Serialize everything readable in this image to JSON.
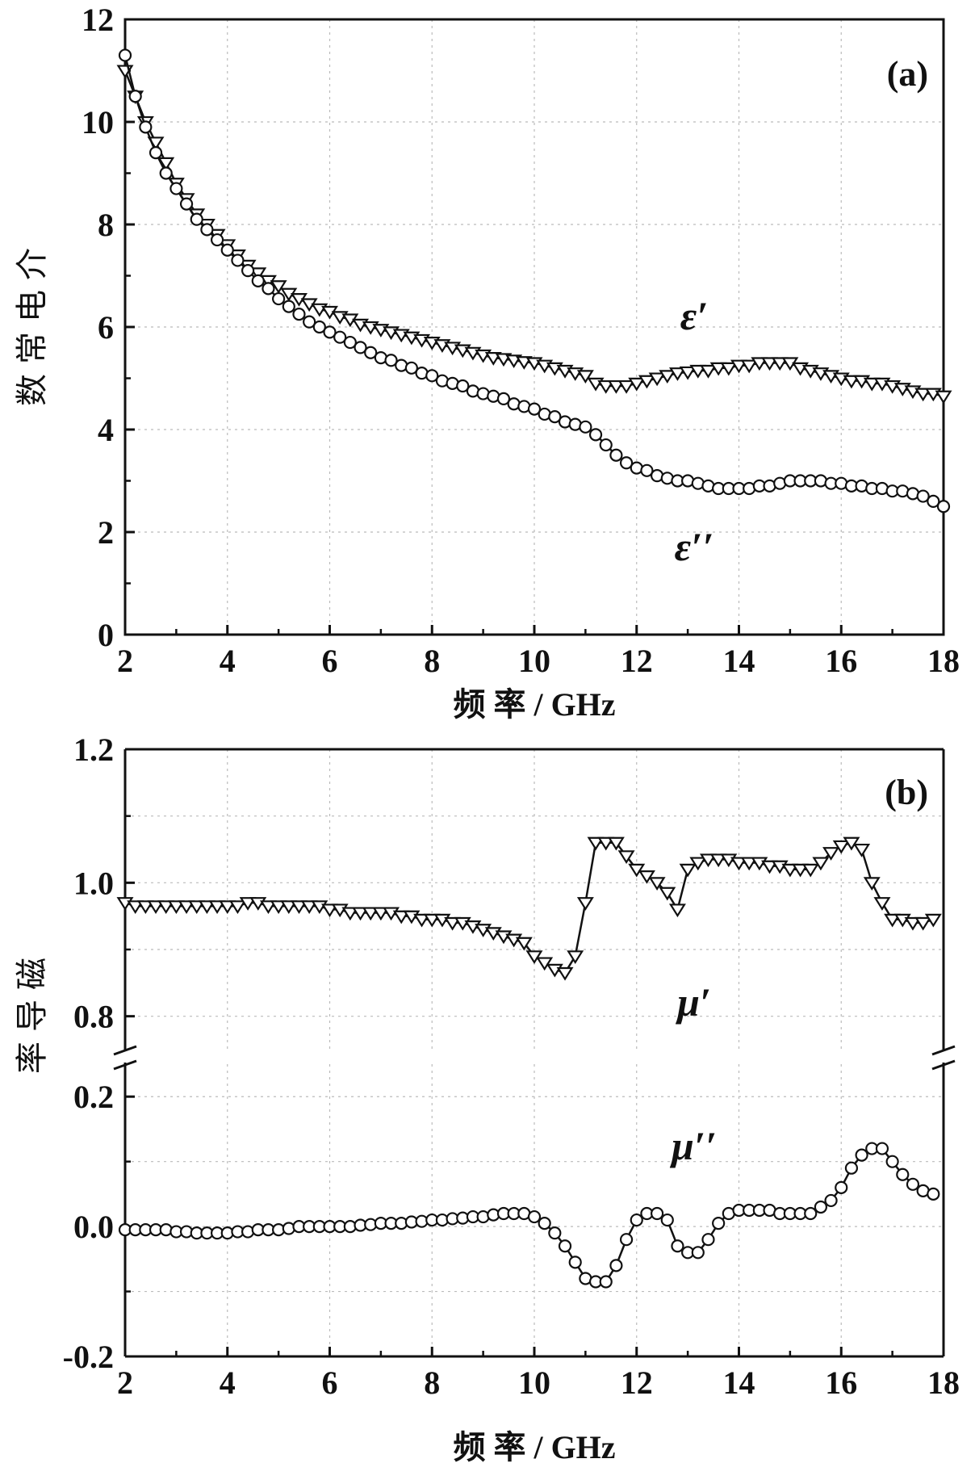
{
  "figure": {
    "panels": [
      {
        "id": "a",
        "panel_label": "(a)",
        "ylabel": "介电常数",
        "xlabel": "频 率 / GHz",
        "series_labels": [
          "ε′",
          "ε′′"
        ]
      },
      {
        "id": "b",
        "panel_label": "(b)",
        "ylabel": "磁导率",
        "xlabel": "频 率 / GHz",
        "series_labels": [
          "μ′",
          "μ′′"
        ]
      }
    ]
  },
  "chart_data": [
    {
      "type": "scatter",
      "panel": "(a)",
      "xlabel": "频 率 / GHz",
      "ylabel": "介电常数",
      "xlim": [
        2,
        18
      ],
      "ylim": [
        0,
        12
      ],
      "xticks": [
        2,
        4,
        6,
        8,
        10,
        12,
        14,
        16,
        18
      ],
      "yticks": [
        0,
        2,
        4,
        6,
        8,
        10,
        12
      ],
      "grid": true,
      "series": [
        {
          "name": "ε′",
          "marker": "triangle-down",
          "x": [
            2.0,
            2.2,
            2.4,
            2.6,
            2.8,
            3.0,
            3.2,
            3.4,
            3.6,
            3.8,
            4.0,
            4.2,
            4.4,
            4.6,
            4.8,
            5.0,
            5.2,
            5.4,
            5.6,
            5.8,
            6.0,
            6.2,
            6.4,
            6.6,
            6.8,
            7.0,
            7.2,
            7.4,
            7.6,
            7.8,
            8.0,
            8.2,
            8.4,
            8.6,
            8.8,
            9.0,
            9.2,
            9.4,
            9.6,
            9.8,
            10.0,
            10.2,
            10.4,
            10.6,
            10.8,
            11.0,
            11.2,
            11.4,
            11.6,
            11.8,
            12.0,
            12.2,
            12.4,
            12.6,
            12.8,
            13.0,
            13.2,
            13.4,
            13.6,
            13.8,
            14.0,
            14.2,
            14.4,
            14.6,
            14.8,
            15.0,
            15.2,
            15.4,
            15.6,
            15.8,
            16.0,
            16.2,
            16.4,
            16.6,
            16.8,
            17.0,
            17.2,
            17.4,
            17.6,
            17.8,
            18.0
          ],
          "y": [
            11.0,
            10.5,
            10.0,
            9.6,
            9.2,
            8.8,
            8.5,
            8.2,
            8.0,
            7.8,
            7.6,
            7.4,
            7.2,
            7.05,
            6.9,
            6.8,
            6.65,
            6.55,
            6.45,
            6.35,
            6.3,
            6.2,
            6.15,
            6.05,
            6.0,
            5.95,
            5.9,
            5.85,
            5.8,
            5.75,
            5.7,
            5.65,
            5.6,
            5.55,
            5.5,
            5.45,
            5.4,
            5.38,
            5.35,
            5.32,
            5.3,
            5.25,
            5.2,
            5.15,
            5.1,
            5.05,
            4.9,
            4.85,
            4.85,
            4.85,
            4.9,
            4.95,
            5.0,
            5.05,
            5.1,
            5.12,
            5.15,
            5.15,
            5.2,
            5.2,
            5.25,
            5.25,
            5.3,
            5.3,
            5.3,
            5.3,
            5.2,
            5.15,
            5.1,
            5.05,
            5.0,
            4.95,
            4.95,
            4.9,
            4.9,
            4.85,
            4.8,
            4.75,
            4.7,
            4.7,
            4.65
          ]
        },
        {
          "name": "ε′′",
          "marker": "circle",
          "x": [
            2.0,
            2.2,
            2.4,
            2.6,
            2.8,
            3.0,
            3.2,
            3.4,
            3.6,
            3.8,
            4.0,
            4.2,
            4.4,
            4.6,
            4.8,
            5.0,
            5.2,
            5.4,
            5.6,
            5.8,
            6.0,
            6.2,
            6.4,
            6.6,
            6.8,
            7.0,
            7.2,
            7.4,
            7.6,
            7.8,
            8.0,
            8.2,
            8.4,
            8.6,
            8.8,
            9.0,
            9.2,
            9.4,
            9.6,
            9.8,
            10.0,
            10.2,
            10.4,
            10.6,
            10.8,
            11.0,
            11.2,
            11.4,
            11.6,
            11.8,
            12.0,
            12.2,
            12.4,
            12.6,
            12.8,
            13.0,
            13.2,
            13.4,
            13.6,
            13.8,
            14.0,
            14.2,
            14.4,
            14.6,
            14.8,
            15.0,
            15.2,
            15.4,
            15.6,
            15.8,
            16.0,
            16.2,
            16.4,
            16.6,
            16.8,
            17.0,
            17.2,
            17.4,
            17.6,
            17.8,
            18.0
          ],
          "y": [
            11.3,
            10.5,
            9.9,
            9.4,
            9.0,
            8.7,
            8.4,
            8.1,
            7.9,
            7.7,
            7.5,
            7.3,
            7.1,
            6.9,
            6.75,
            6.55,
            6.4,
            6.25,
            6.1,
            6.0,
            5.9,
            5.8,
            5.7,
            5.6,
            5.5,
            5.4,
            5.35,
            5.25,
            5.2,
            5.1,
            5.05,
            4.95,
            4.9,
            4.85,
            4.75,
            4.7,
            4.65,
            4.6,
            4.5,
            4.45,
            4.4,
            4.3,
            4.25,
            4.15,
            4.1,
            4.05,
            3.9,
            3.7,
            3.5,
            3.35,
            3.25,
            3.2,
            3.1,
            3.05,
            3.0,
            3.0,
            2.95,
            2.9,
            2.85,
            2.85,
            2.85,
            2.85,
            2.9,
            2.9,
            2.95,
            3.0,
            3.0,
            3.0,
            3.0,
            2.95,
            2.95,
            2.9,
            2.9,
            2.85,
            2.85,
            2.8,
            2.8,
            2.75,
            2.7,
            2.6,
            2.5
          ]
        }
      ]
    },
    {
      "type": "scatter",
      "panel": "(b)",
      "xlabel": "频 率 / GHz",
      "ylabel": "磁导率",
      "xlim": [
        2,
        18
      ],
      "ylim": [
        -0.2,
        1.2
      ],
      "y_axis_break": [
        0.25,
        0.75
      ],
      "xticks": [
        2,
        4,
        6,
        8,
        10,
        12,
        14,
        16,
        18
      ],
      "yticks": [
        -0.2,
        0.0,
        0.2,
        0.8,
        1.0,
        1.2
      ],
      "grid": true,
      "series": [
        {
          "name": "μ′",
          "marker": "triangle-down",
          "x": [
            2.0,
            2.2,
            2.4,
            2.6,
            2.8,
            3.0,
            3.2,
            3.4,
            3.6,
            3.8,
            4.0,
            4.2,
            4.4,
            4.6,
            4.8,
            5.0,
            5.2,
            5.4,
            5.6,
            5.8,
            6.0,
            6.2,
            6.4,
            6.6,
            6.8,
            7.0,
            7.2,
            7.4,
            7.6,
            7.8,
            8.0,
            8.2,
            8.4,
            8.6,
            8.8,
            9.0,
            9.2,
            9.4,
            9.6,
            9.8,
            10.0,
            10.2,
            10.4,
            10.6,
            10.8,
            11.0,
            11.2,
            11.4,
            11.6,
            11.8,
            12.0,
            12.2,
            12.4,
            12.6,
            12.8,
            13.0,
            13.2,
            13.4,
            13.6,
            13.8,
            14.0,
            14.2,
            14.4,
            14.6,
            14.8,
            15.0,
            15.2,
            15.4,
            15.6,
            15.8,
            16.0,
            16.2,
            16.4,
            16.6,
            16.8,
            17.0,
            17.2,
            17.4,
            17.6,
            17.8
          ],
          "y": [
            0.97,
            0.965,
            0.965,
            0.965,
            0.965,
            0.965,
            0.965,
            0.965,
            0.965,
            0.965,
            0.965,
            0.965,
            0.97,
            0.97,
            0.965,
            0.965,
            0.965,
            0.965,
            0.965,
            0.965,
            0.96,
            0.96,
            0.955,
            0.955,
            0.955,
            0.955,
            0.955,
            0.95,
            0.95,
            0.945,
            0.945,
            0.945,
            0.94,
            0.94,
            0.935,
            0.93,
            0.925,
            0.92,
            0.915,
            0.91,
            0.89,
            0.88,
            0.87,
            0.865,
            0.89,
            0.97,
            1.06,
            1.06,
            1.06,
            1.04,
            1.02,
            1.01,
            1.0,
            0.985,
            0.96,
            1.02,
            1.03,
            1.035,
            1.035,
            1.035,
            1.03,
            1.03,
            1.03,
            1.025,
            1.025,
            1.02,
            1.02,
            1.02,
            1.03,
            1.045,
            1.055,
            1.06,
            1.05,
            1.0,
            0.97,
            0.945,
            0.945,
            0.94,
            0.94,
            0.945
          ]
        },
        {
          "name": "μ′′",
          "marker": "circle",
          "x": [
            2.0,
            2.2,
            2.4,
            2.6,
            2.8,
            3.0,
            3.2,
            3.4,
            3.6,
            3.8,
            4.0,
            4.2,
            4.4,
            4.6,
            4.8,
            5.0,
            5.2,
            5.4,
            5.6,
            5.8,
            6.0,
            6.2,
            6.4,
            6.6,
            6.8,
            7.0,
            7.2,
            7.4,
            7.6,
            7.8,
            8.0,
            8.2,
            8.4,
            8.6,
            8.8,
            9.0,
            9.2,
            9.4,
            9.6,
            9.8,
            10.0,
            10.2,
            10.4,
            10.6,
            10.8,
            11.0,
            11.2,
            11.4,
            11.6,
            11.8,
            12.0,
            12.2,
            12.4,
            12.6,
            12.8,
            13.0,
            13.2,
            13.4,
            13.6,
            13.8,
            14.0,
            14.2,
            14.4,
            14.6,
            14.8,
            15.0,
            15.2,
            15.4,
            15.6,
            15.8,
            16.0,
            16.2,
            16.4,
            16.6,
            16.8,
            17.0,
            17.2,
            17.4,
            17.6,
            17.8
          ],
          "y": [
            -0.005,
            -0.005,
            -0.005,
            -0.005,
            -0.005,
            -0.008,
            -0.008,
            -0.01,
            -0.01,
            -0.01,
            -0.01,
            -0.008,
            -0.008,
            -0.005,
            -0.005,
            -0.005,
            -0.003,
            0.0,
            0.0,
            0.0,
            0.0,
            0.0,
            0.0,
            0.002,
            0.003,
            0.005,
            0.005,
            0.005,
            0.007,
            0.008,
            0.01,
            0.01,
            0.012,
            0.013,
            0.015,
            0.015,
            0.018,
            0.02,
            0.02,
            0.02,
            0.015,
            0.005,
            -0.01,
            -0.03,
            -0.055,
            -0.08,
            -0.085,
            -0.085,
            -0.06,
            -0.02,
            0.01,
            0.02,
            0.02,
            0.01,
            -0.03,
            -0.04,
            -0.04,
            -0.02,
            0.005,
            0.02,
            0.025,
            0.025,
            0.025,
            0.025,
            0.02,
            0.02,
            0.02,
            0.02,
            0.03,
            0.04,
            0.06,
            0.09,
            0.11,
            0.12,
            0.12,
            0.1,
            0.08,
            0.065,
            0.055,
            0.05
          ]
        }
      ]
    }
  ]
}
